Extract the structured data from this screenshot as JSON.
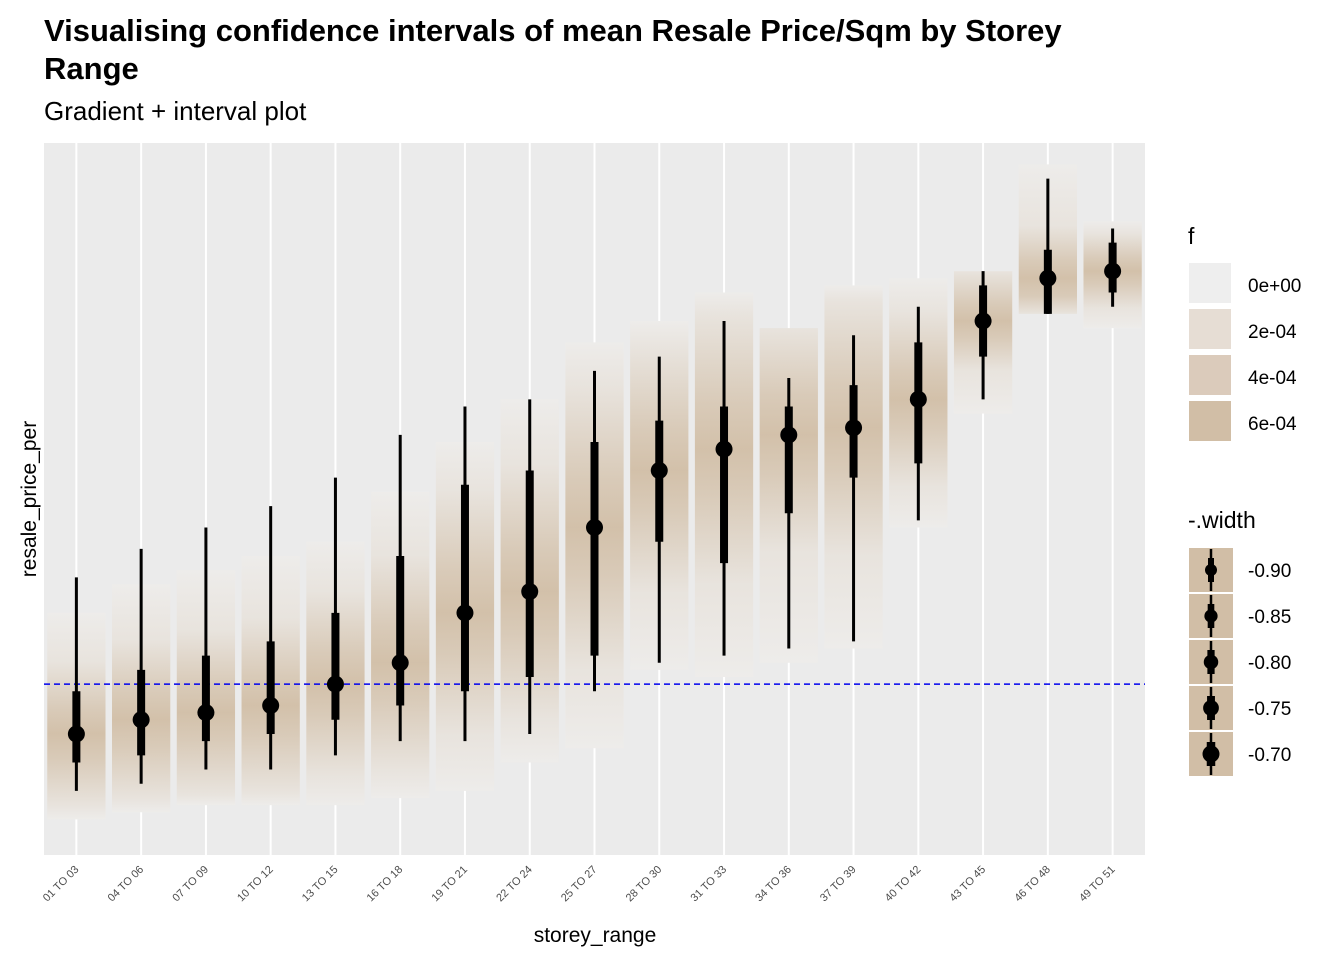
{
  "chart_data": {
    "type": "interval",
    "title": "Visualising confidence intervals of mean Resale Price/Sqm by Storey Range",
    "subtitle": "Gradient + interval plot",
    "xlabel": "storey_range",
    "ylabel": "resale_price_per",
    "y_scale_units": "pixel-relative (no y tick labels printed)",
    "categories": [
      "01 TO 03",
      "04 TO 06",
      "07 TO 09",
      "10 TO 12",
      "13 TO 15",
      "16 TO 18",
      "19 TO 21",
      "22 TO 24",
      "25 TO 27",
      "28 TO 30",
      "31 TO 33",
      "34 TO 36",
      "37 TO 39",
      "40 TO 42",
      "43 TO 45",
      "46 TO 48",
      "49 TO 51"
    ],
    "reference_line": {
      "y": 0.24,
      "style": "dashed",
      "color": "#0000ee"
    },
    "series": [
      {
        "name": "01 TO 03",
        "mean": 0.17,
        "thick": [
          0.13,
          0.23
        ],
        "thin": [
          0.09,
          0.39
        ],
        "band": [
          0.05,
          0.34
        ]
      },
      {
        "name": "04 TO 06",
        "mean": 0.19,
        "thick": [
          0.14,
          0.26
        ],
        "thin": [
          0.1,
          0.43
        ],
        "band": [
          0.06,
          0.38
        ]
      },
      {
        "name": "07 TO 09",
        "mean": 0.2,
        "thick": [
          0.16,
          0.28
        ],
        "thin": [
          0.12,
          0.46
        ],
        "band": [
          0.07,
          0.4
        ]
      },
      {
        "name": "10 TO 12",
        "mean": 0.21,
        "thick": [
          0.17,
          0.3
        ],
        "thin": [
          0.12,
          0.49
        ],
        "band": [
          0.07,
          0.42
        ]
      },
      {
        "name": "13 TO 15",
        "mean": 0.24,
        "thick": [
          0.19,
          0.34
        ],
        "thin": [
          0.14,
          0.53
        ],
        "band": [
          0.07,
          0.44
        ]
      },
      {
        "name": "16 TO 18",
        "mean": 0.27,
        "thick": [
          0.21,
          0.42
        ],
        "thin": [
          0.16,
          0.59
        ],
        "band": [
          0.08,
          0.51
        ]
      },
      {
        "name": "19 TO 21",
        "mean": 0.34,
        "thick": [
          0.23,
          0.52
        ],
        "thin": [
          0.16,
          0.63
        ],
        "band": [
          0.09,
          0.58
        ]
      },
      {
        "name": "22 TO 24",
        "mean": 0.37,
        "thick": [
          0.25,
          0.54
        ],
        "thin": [
          0.17,
          0.64
        ],
        "band": [
          0.13,
          0.64
        ]
      },
      {
        "name": "25 TO 27",
        "mean": 0.46,
        "thick": [
          0.28,
          0.58
        ],
        "thin": [
          0.23,
          0.68
        ],
        "band": [
          0.15,
          0.72
        ]
      },
      {
        "name": "28 TO 30",
        "mean": 0.54,
        "thick": [
          0.44,
          0.61
        ],
        "thin": [
          0.27,
          0.7
        ],
        "band": [
          0.26,
          0.75
        ]
      },
      {
        "name": "31 TO 33",
        "mean": 0.57,
        "thick": [
          0.41,
          0.63
        ],
        "thin": [
          0.28,
          0.75
        ],
        "band": [
          0.25,
          0.79
        ]
      },
      {
        "name": "34 TO 36",
        "mean": 0.59,
        "thick": [
          0.48,
          0.63
        ],
        "thin": [
          0.29,
          0.67
        ],
        "band": [
          0.27,
          0.74
        ]
      },
      {
        "name": "37 TO 39",
        "mean": 0.6,
        "thick": [
          0.53,
          0.66
        ],
        "thin": [
          0.3,
          0.73
        ],
        "band": [
          0.29,
          0.8
        ]
      },
      {
        "name": "40 TO 42",
        "mean": 0.64,
        "thick": [
          0.55,
          0.72
        ],
        "thin": [
          0.47,
          0.77
        ],
        "band": [
          0.46,
          0.81
        ]
      },
      {
        "name": "43 TO 45",
        "mean": 0.75,
        "thick": [
          0.7,
          0.8
        ],
        "thin": [
          0.64,
          0.82
        ],
        "band": [
          0.62,
          0.82
        ]
      },
      {
        "name": "46 TO 48",
        "mean": 0.81,
        "thick": [
          0.76,
          0.85
        ],
        "thin": [
          0.76,
          0.95
        ],
        "band": [
          0.76,
          0.97
        ]
      },
      {
        "name": "49 TO 51",
        "mean": 0.82,
        "thick": [
          0.79,
          0.86
        ],
        "thin": [
          0.77,
          0.88
        ],
        "band": [
          0.74,
          0.89
        ]
      }
    ],
    "legends": [
      {
        "title": "f",
        "type": "fill",
        "entries": [
          {
            "label": "0e+00",
            "color": "#eeeeee"
          },
          {
            "label": "2e-04",
            "color": "#e6ddd4"
          },
          {
            "label": "4e-04",
            "color": "#dbcbbb"
          },
          {
            "label": "6e-04",
            "color": "#d1bea6"
          }
        ]
      },
      {
        "title": "-.width",
        "type": "interval",
        "entries": [
          {
            "label": "-0.90",
            "level": 0.9
          },
          {
            "label": "-0.85",
            "level": 0.85
          },
          {
            "label": "-0.80",
            "level": 0.8
          },
          {
            "label": "-0.75",
            "level": 0.75
          },
          {
            "label": "-0.70",
            "level": 0.7
          }
        ]
      }
    ],
    "panel_background": "#ebebeb",
    "gradient_color": "#d1bea6",
    "grid": true,
    "legend_position": "right"
  }
}
